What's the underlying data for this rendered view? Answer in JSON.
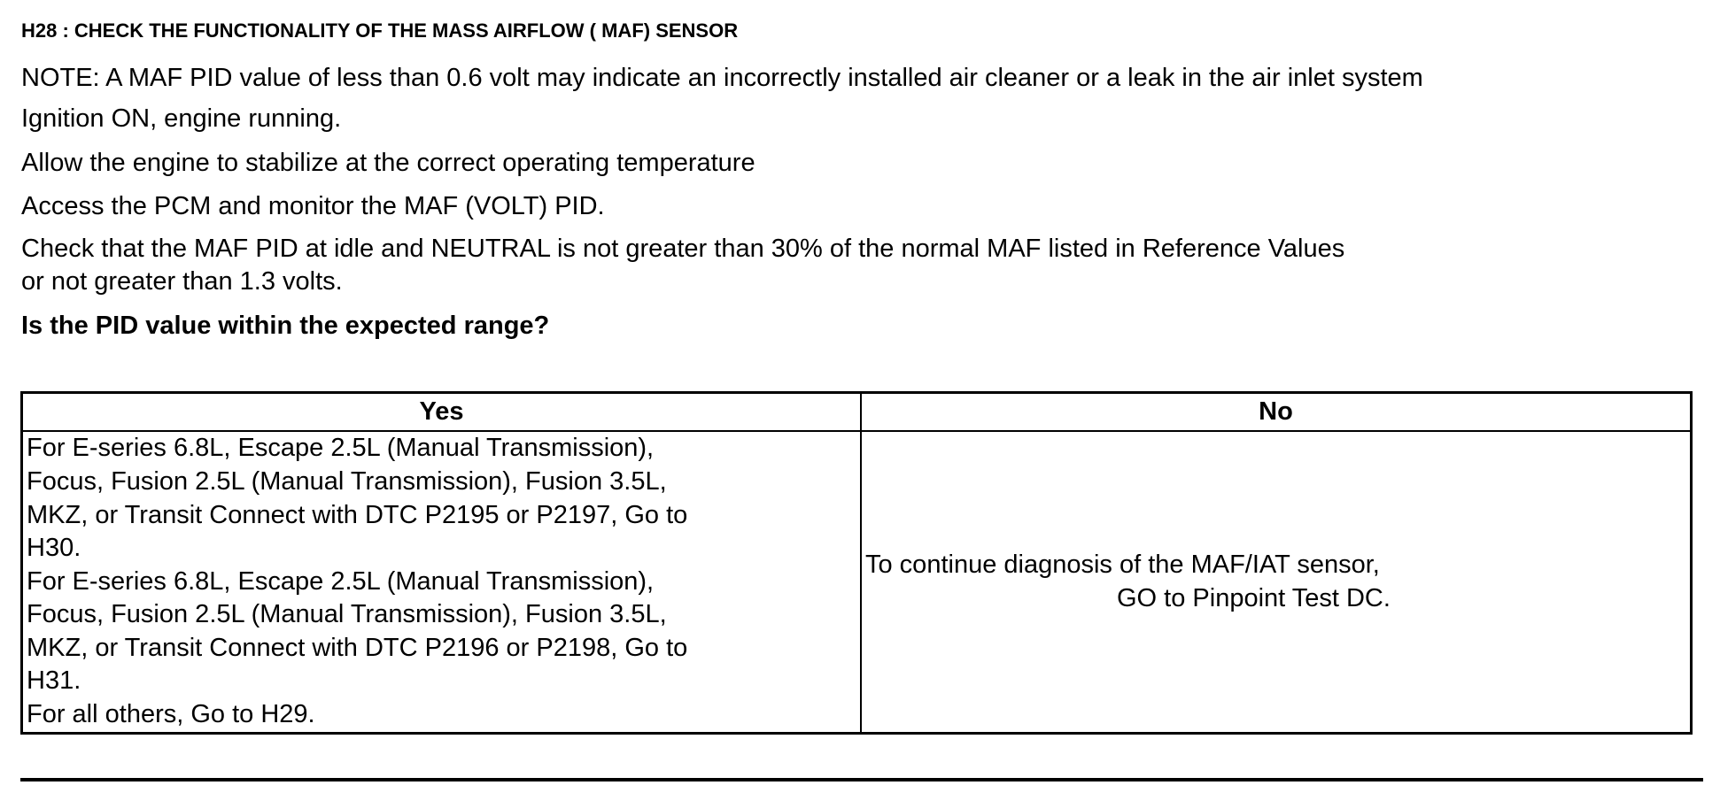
{
  "title": "H28 : CHECK THE FUNCTIONALITY OF THE MASS AIRFLOW ( MAF) SENSOR",
  "lines": [
    "NOTE: A MAF PID value of less than 0.6 volt may indicate an incorrectly installed air cleaner or a leak in the air inlet system",
    "Ignition ON, engine running.",
    "Allow the engine to stabilize at the correct operating temperature",
    "Access the PCM and monitor the  MAF (VOLT) PID.",
    "Check that the MAF PID at idle and NEUTRAL is not greater than 30% of the normal MAF listed in Reference Values",
    "or not greater than 1.3 volts."
  ],
  "question": "Is the PID value within the expected range?",
  "table": {
    "headers": [
      "Yes",
      "No"
    ],
    "yes_lines": [
      "For E-series 6.8L, Escape 2.5L (Manual Transmission),",
      "Focus, Fusion 2.5L (Manual Transmission), Fusion 3.5L,",
      "MKZ, or Transit Connect with DTC P2195 or P2197, Go to",
      "H30.",
      "For E-series 6.8L, Escape 2.5L (Manual Transmission),",
      "Focus, Fusion 2.5L (Manual Transmission), Fusion 3.5L,",
      "MKZ, or Transit Connect with DTC P2196 or P2198, Go to",
      "H31.",
      "For all others, Go to H29."
    ],
    "no_lines": [
      "To continue diagnosis of the MAF/IAT sensor,",
      "GO to Pinpoint Test DC."
    ]
  }
}
